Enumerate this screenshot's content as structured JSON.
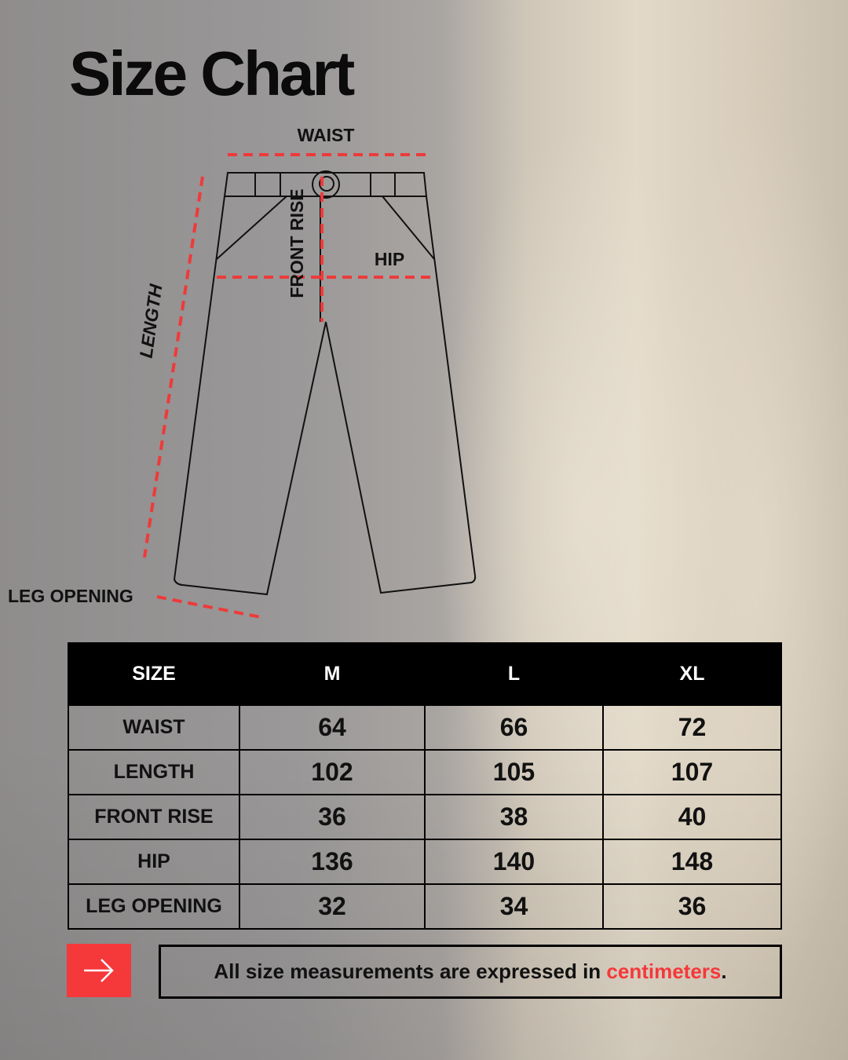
{
  "title": "Size Chart",
  "diagram": {
    "waist": "WAIST",
    "hip": "HIP",
    "front_rise": "FRONT RISE",
    "length": "LENGTH",
    "leg_opening": "LEG OPENING"
  },
  "table": {
    "headers": [
      "SIZE",
      "M",
      "L",
      "XL"
    ],
    "rows": [
      {
        "label": "WAIST",
        "values": [
          "64",
          "66",
          "72"
        ]
      },
      {
        "label": "LENGTH",
        "values": [
          "102",
          "105",
          "107"
        ]
      },
      {
        "label": "FRONT RISE",
        "values": [
          "36",
          "38",
          "40"
        ]
      },
      {
        "label": "HIP",
        "values": [
          "136",
          "140",
          "148"
        ]
      },
      {
        "label": "LEG OPENING",
        "values": [
          "32",
          "34",
          "36"
        ]
      }
    ]
  },
  "note": {
    "text": "All size measurements are expressed in ",
    "highlight": "centimeters",
    "end": "."
  },
  "icons": {
    "arrow": "arrow-right-icon"
  },
  "colors": {
    "accent": "#f5383a",
    "header_bg": "#000000"
  }
}
